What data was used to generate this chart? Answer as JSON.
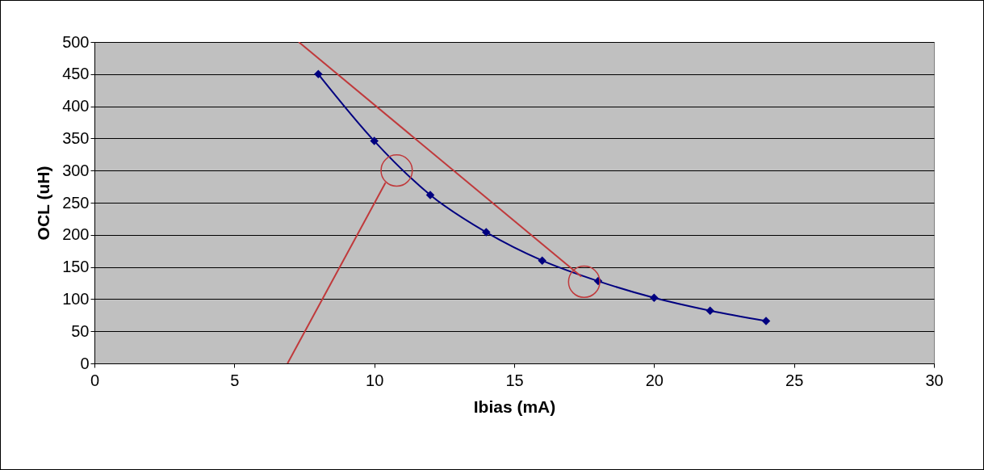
{
  "chart_data": {
    "type": "line",
    "xlabel": "Ibias (mA)",
    "ylabel": "OCL (uH)",
    "xlim": [
      0,
      30
    ],
    "ylim": [
      0,
      500
    ],
    "xticks": [
      0,
      5,
      10,
      15,
      20,
      25,
      30
    ],
    "yticks": [
      0,
      50,
      100,
      150,
      200,
      250,
      300,
      350,
      400,
      450,
      500
    ],
    "grid": "y",
    "legend": false,
    "marker": "diamond",
    "line_style": "solid",
    "series": [
      {
        "color": "#000080",
        "x": [
          8,
          10,
          12,
          14,
          16,
          18,
          20,
          22,
          24
        ],
        "values": [
          450,
          346,
          262,
          204,
          160,
          128,
          102,
          82,
          66
        ]
      },
      {
        "type": "line",
        "marker": "none",
        "color": "#c0393b",
        "x": [
          7.3,
          17.4
        ],
        "values": [
          500,
          135
        ]
      },
      {
        "type": "line",
        "marker": "none",
        "color": "#c0393b",
        "x": [
          6.9,
          10.4
        ],
        "values": [
          0,
          281
        ]
      },
      {
        "type": "scatter",
        "marker": "circle",
        "color": "#c0393b",
        "x": [
          10.8,
          17.5
        ],
        "values": [
          300,
          127
        ]
      }
    ]
  }
}
